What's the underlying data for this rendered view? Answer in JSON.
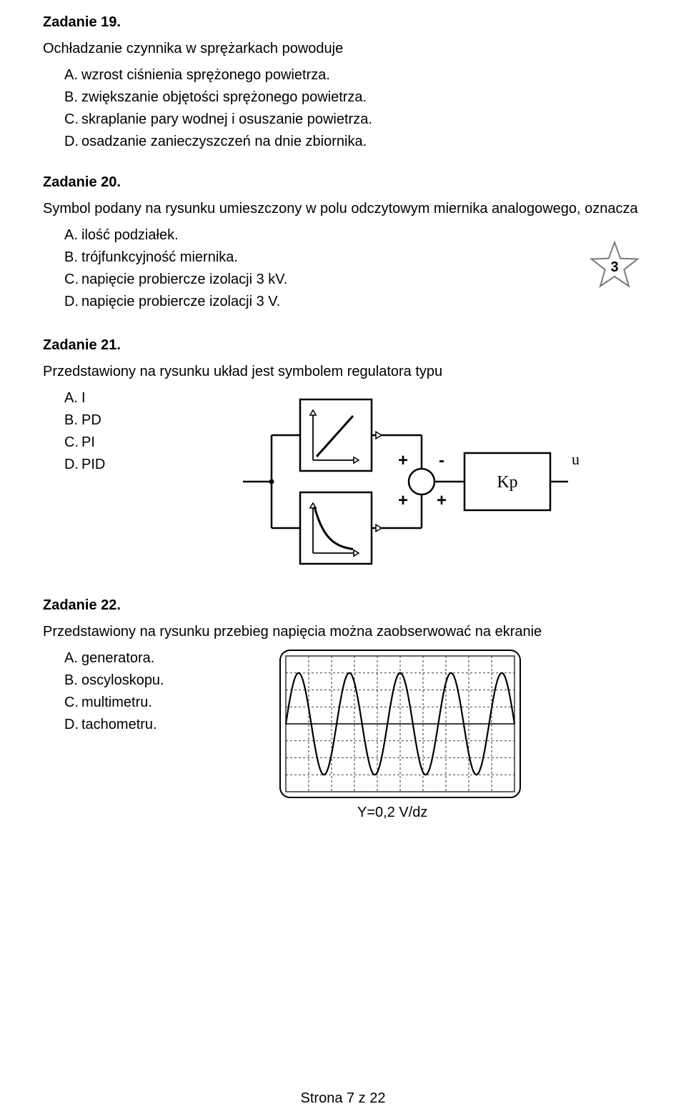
{
  "q19": {
    "title": "Zadanie 19.",
    "prompt": "Ochładzanie czynnika w sprężarkach powoduje",
    "opts": {
      "A": "wzrost ciśnienia sprężonego powietrza.",
      "B": "zwiększanie objętości sprężonego powietrza.",
      "C": "skraplanie pary wodnej i osuszanie powietrza.",
      "D": "osadzanie zanieczyszczeń na dnie zbiornika."
    }
  },
  "q20": {
    "title": "Zadanie 20.",
    "prompt": "Symbol podany na rysunku umieszczony w polu odczytowym miernika analogowego, oznacza",
    "opts": {
      "A": "ilość podziałek.",
      "B": "trójfunkcyjność miernika.",
      "C": "napięcie probiercze izolacji 3 kV.",
      "D": "napięcie probiercze izolacji 3 V."
    },
    "star": {
      "label": "3",
      "stroke": "#7a7a7a",
      "fill": "#ffffff",
      "text_color": "#000000",
      "stroke_width": 2
    }
  },
  "q21": {
    "title": "Zadanie 21.",
    "prompt": "Przedstawiony na rysunku układ jest symbolem regulatora typu",
    "opts": {
      "A": "I",
      "B": "PD",
      "C": "PI",
      "D": "PID"
    },
    "diagram": {
      "stroke": "#000000",
      "fill": "#ffffff",
      "stroke_width": 2.5,
      "arrow_stroke": "#000000",
      "kp_label": "Kp",
      "u_label": "u",
      "plus": "+",
      "minus": "-"
    }
  },
  "q22": {
    "title": "Zadanie 22.",
    "prompt": "Przedstawiony na rysunku przebieg napięcia można zaobserwować na ekranie",
    "opts": {
      "A": "generatora.",
      "B": "oscyloskopu.",
      "C": "multimetru.",
      "D": "tachometru."
    },
    "diagram": {
      "border_color": "#000000",
      "grid_color": "#000000",
      "wave_color": "#000000",
      "background": "#ffffff",
      "caption": "Y=0,2 V/dz",
      "cycles": 4.5,
      "amplitude_divs": 3,
      "grid_cols": 10,
      "grid_rows": 8
    }
  },
  "footer": "Strona 7 z 22"
}
